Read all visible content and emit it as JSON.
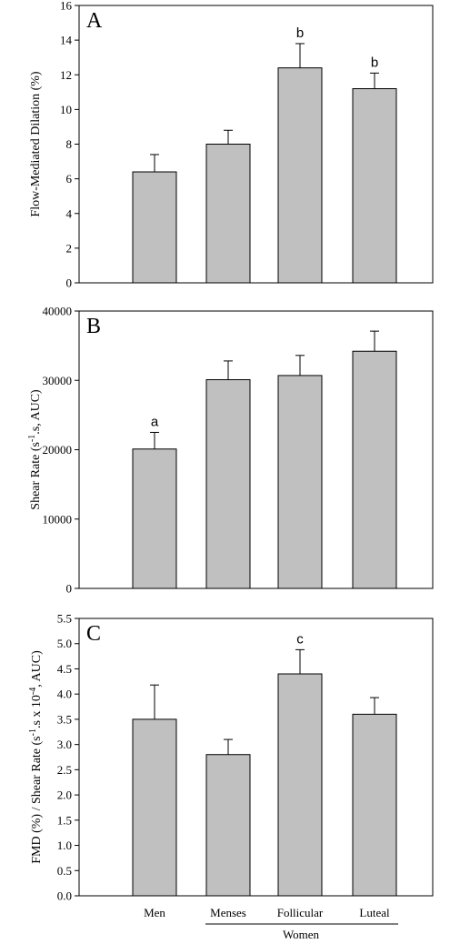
{
  "chart_data": [
    {
      "type": "bar",
      "panel_label": "A",
      "categories": [
        "Men",
        "Menses",
        "Follicular",
        "Luteal"
      ],
      "values": [
        6.4,
        8.0,
        12.4,
        11.2
      ],
      "errors": [
        1.0,
        0.8,
        1.4,
        0.9
      ],
      "annotations": [
        "",
        "",
        "b",
        "b"
      ],
      "ylabel": "Flow-Mediated Dilation (%)",
      "ylim": [
        0,
        16
      ],
      "yticks": [
        0,
        2,
        4,
        6,
        8,
        10,
        12,
        14,
        16
      ],
      "bar_color": "#c0c0c0"
    },
    {
      "type": "bar",
      "panel_label": "B",
      "categories": [
        "Men",
        "Menses",
        "Follicular",
        "Luteal"
      ],
      "values": [
        20100,
        30100,
        30700,
        34200
      ],
      "errors": [
        2400,
        2700,
        2900,
        2900
      ],
      "annotations": [
        "a",
        "",
        "",
        ""
      ],
      "ylabel_main": "Shear Rate (s",
      "ylabel_sup": "-1",
      "ylabel_rest": ".s, AUC)",
      "ylim": [
        0,
        40000
      ],
      "yticks": [
        0,
        10000,
        20000,
        30000,
        40000
      ],
      "bar_color": "#c0c0c0"
    },
    {
      "type": "bar",
      "panel_label": "C",
      "categories": [
        "Men",
        "Menses",
        "Follicular",
        "Luteal"
      ],
      "values": [
        3.5,
        2.8,
        4.4,
        3.6
      ],
      "errors": [
        0.68,
        0.3,
        0.48,
        0.33
      ],
      "annotations": [
        "",
        "",
        "c",
        ""
      ],
      "ylabel_main": "FMD (%) / Shear Rate (s",
      "ylabel_sup1": "-1",
      "ylabel_mid": ".s x 10",
      "ylabel_sup2": "-4",
      "ylabel_rest": ", AUC)",
      "ylim": [
        0,
        5.5
      ],
      "yticks": [
        "0.0",
        "0.5",
        "1.0",
        "1.5",
        "2.0",
        "2.5",
        "3.0",
        "3.5",
        "4.0",
        "4.5",
        "5.0",
        "5.5"
      ],
      "bar_color": "#c0c0c0"
    }
  ],
  "x_axis": {
    "categories": [
      "Men",
      "Menses",
      "Follicular",
      "Luteal"
    ],
    "group_label": "Women"
  }
}
